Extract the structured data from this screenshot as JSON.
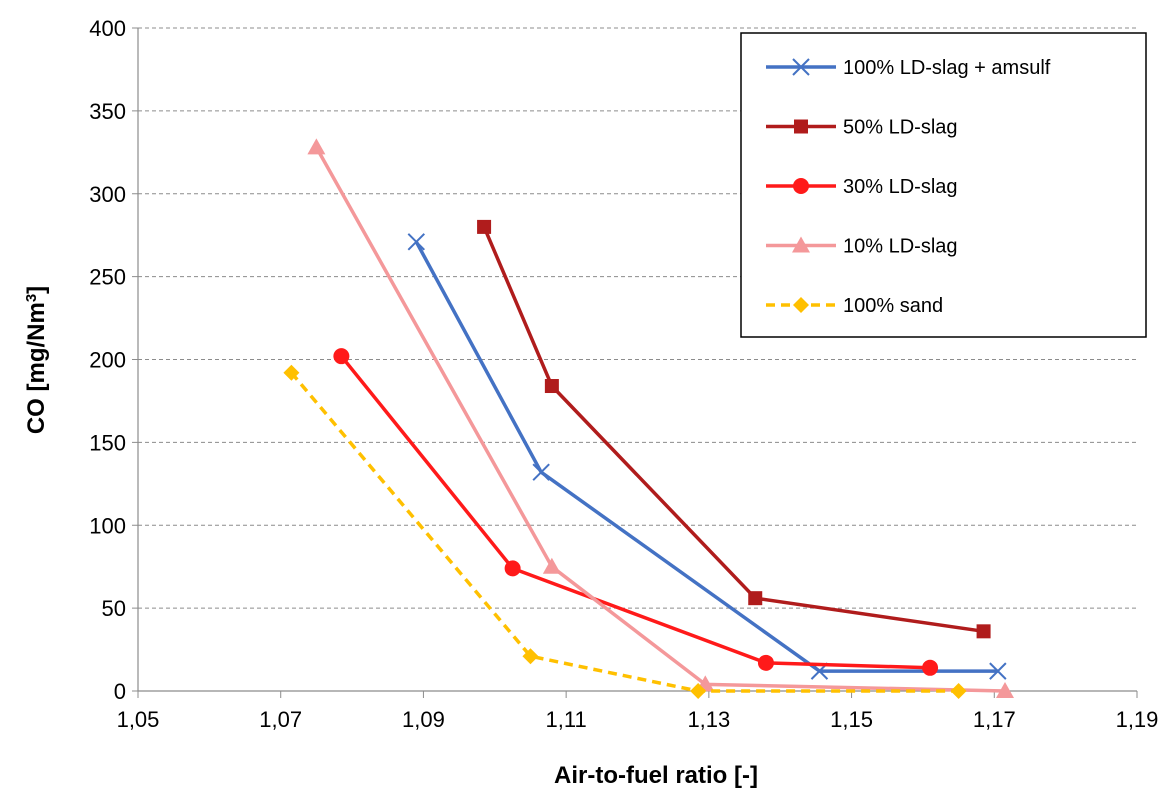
{
  "chart_data": {
    "type": "line",
    "xlabel": "Air-to-fuel ratio [-]",
    "ylabel": {
      "main": "CO [mg/Nm",
      "sup": "3",
      "close": "]"
    },
    "xlim": [
      1.05,
      1.19
    ],
    "ylim": [
      0,
      400
    ],
    "x_ticks": [
      1.05,
      1.07,
      1.09,
      1.11,
      1.13,
      1.15,
      1.17,
      1.19
    ],
    "x_tick_labels": [
      "1,05",
      "1,07",
      "1,09",
      "1,11",
      "1,13",
      "1,15",
      "1,17",
      "1,19"
    ],
    "y_ticks": [
      0,
      50,
      100,
      150,
      200,
      250,
      300,
      350,
      400
    ],
    "y_tick_labels": [
      "0",
      "50",
      "100",
      "150",
      "200",
      "250",
      "300",
      "350",
      "400"
    ],
    "grid": "horizontal dashed",
    "legend_position": "top-right",
    "series": [
      {
        "name": "100% LD-slag + amsulf",
        "color": "#4472C4",
        "marker": "x",
        "dashed": false,
        "x": [
          1.089,
          1.1065,
          1.1455,
          1.1705
        ],
        "y": [
          271,
          132,
          12,
          12
        ]
      },
      {
        "name": "50% LD-slag",
        "color": "#B01C1C",
        "marker": "square",
        "dashed": false,
        "x": [
          1.0985,
          1.108,
          1.1365,
          1.1685
        ],
        "y": [
          280,
          184,
          56,
          36
        ]
      },
      {
        "name": "30% LD-slag",
        "color": "#FF1A1A",
        "marker": "circle",
        "dashed": false,
        "x": [
          1.0785,
          1.1025,
          1.138,
          1.161
        ],
        "y": [
          202,
          74,
          17,
          14
        ]
      },
      {
        "name": "10% LD-slag",
        "color": "#F4989A",
        "marker": "triangle",
        "dashed": false,
        "x": [
          1.075,
          1.108,
          1.1295,
          1.1715
        ],
        "y": [
          328,
          75,
          4,
          0
        ]
      },
      {
        "name": "100% sand",
        "color": "#FFC000",
        "marker": "diamond",
        "dashed": true,
        "x": [
          1.0715,
          1.105,
          1.1285,
          1.165
        ],
        "y": [
          192,
          21,
          0,
          0
        ]
      }
    ]
  }
}
